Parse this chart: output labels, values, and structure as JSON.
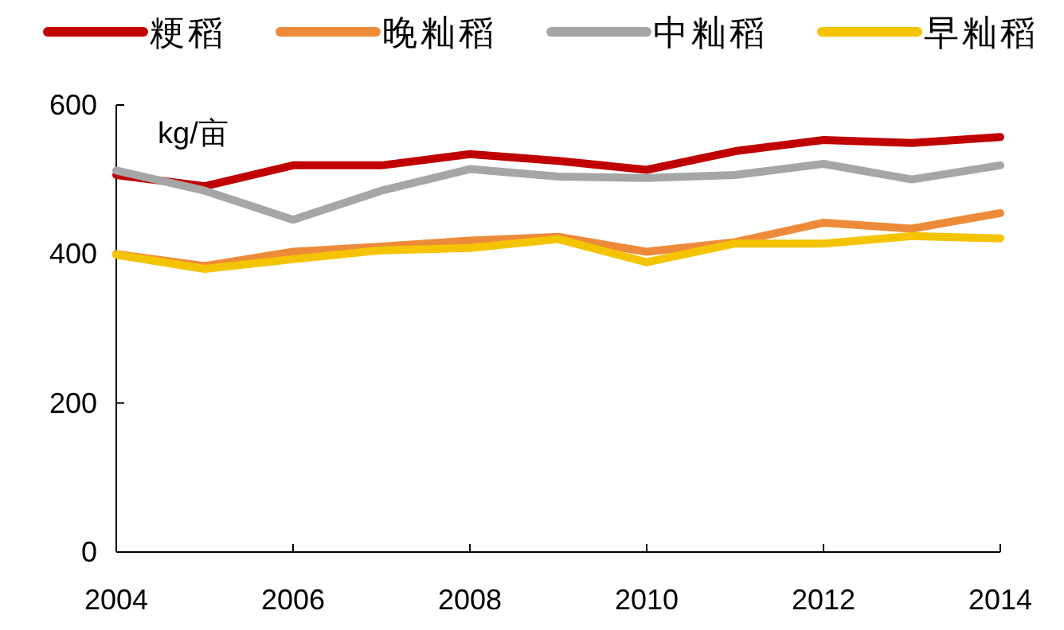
{
  "chart_data": {
    "type": "line",
    "ylabel": "kg/亩",
    "x": [
      2004,
      2005,
      2006,
      2007,
      2008,
      2009,
      2010,
      2011,
      2012,
      2013,
      2014
    ],
    "series": [
      {
        "name": "粳稻",
        "color": "#c00000",
        "values": [
          506,
          491,
          519,
          519,
          534,
          525,
          513,
          538,
          553,
          549,
          557
        ]
      },
      {
        "name": "晚籼稻",
        "color": "#ed8b3a",
        "values": [
          400,
          384,
          403,
          410,
          418,
          423,
          403,
          416,
          442,
          434,
          455
        ]
      },
      {
        "name": "中籼稻",
        "color": "#a6a6a6",
        "values": [
          512,
          485,
          446,
          485,
          514,
          504,
          502,
          506,
          521,
          500,
          519
        ]
      },
      {
        "name": "早籼稻",
        "color": "#f5c400",
        "values": [
          399,
          380,
          393,
          405,
          408,
          420,
          389,
          414,
          414,
          424,
          421
        ]
      }
    ],
    "xlim": [
      2004,
      2014
    ],
    "xticks": [
      2004,
      2006,
      2008,
      2010,
      2012,
      2014
    ],
    "ylim": [
      0,
      600
    ],
    "yticks": [
      0,
      200,
      400,
      600
    ],
    "grid": false,
    "legend": "top",
    "line_style": "solid",
    "marker": "none"
  }
}
